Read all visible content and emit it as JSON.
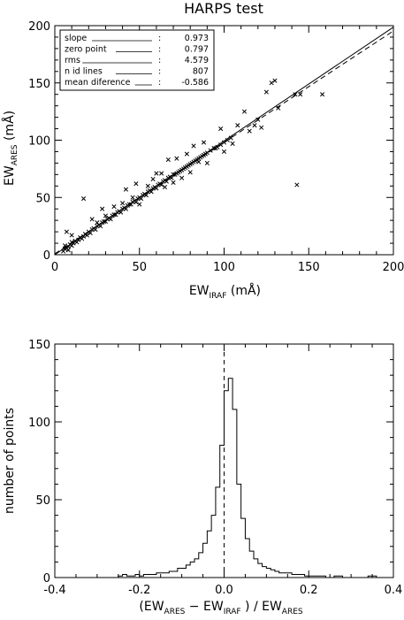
{
  "chart_data": [
    {
      "type": "scatter",
      "title": "HARPS test",
      "xlabel": {
        "main": "EW",
        "sub": "IRAF",
        "unit": " (mÅ)"
      },
      "ylabel": {
        "main": "EW",
        "sub": "ARES",
        "unit": " (mÅ)"
      },
      "xlim": [
        0,
        200
      ],
      "ylim": [
        0,
        200
      ],
      "xticks": [
        0,
        50,
        100,
        150,
        200
      ],
      "yticks": [
        0,
        50,
        100,
        150,
        200
      ],
      "legend_placement": "top-left",
      "stats": [
        {
          "label": "slope",
          "value": "0.973"
        },
        {
          "label": "zero point",
          "value": "0.797"
        },
        {
          "label": "rms",
          "value": "4.579"
        },
        {
          "label": "n id lines",
          "value": "807"
        },
        {
          "label": "mean diference",
          "value": "-0.586"
        }
      ],
      "fit_lines": [
        {
          "style": "solid",
          "from": [
            0,
            0
          ],
          "to": [
            200,
            198.7
          ]
        },
        {
          "style": "dashed",
          "from": [
            0,
            0.797
          ],
          "to": [
            200,
            195.4
          ]
        }
      ],
      "series": [
        {
          "marker": "x",
          "points": [
            [
              5,
              3
            ],
            [
              6,
              5
            ],
            [
              6,
              8
            ],
            [
              7,
              6
            ],
            [
              8,
              4
            ],
            [
              8,
              7
            ],
            [
              9,
              9
            ],
            [
              10,
              8
            ],
            [
              10,
              11
            ],
            [
              11,
              10
            ],
            [
              12,
              12
            ],
            [
              13,
              11
            ],
            [
              14,
              13
            ],
            [
              15,
              15
            ],
            [
              16,
              14
            ],
            [
              17,
              16
            ],
            [
              18,
              18
            ],
            [
              19,
              17
            ],
            [
              20,
              20
            ],
            [
              21,
              19
            ],
            [
              22,
              22
            ],
            [
              23,
              23
            ],
            [
              24,
              22
            ],
            [
              25,
              25
            ],
            [
              26,
              26
            ],
            [
              27,
              25
            ],
            [
              28,
              28
            ],
            [
              29,
              29
            ],
            [
              30,
              29
            ],
            [
              31,
              31
            ],
            [
              32,
              32
            ],
            [
              33,
              31
            ],
            [
              34,
              34
            ],
            [
              35,
              35
            ],
            [
              36,
              35
            ],
            [
              37,
              37
            ],
            [
              38,
              38
            ],
            [
              39,
              37
            ],
            [
              40,
              40
            ],
            [
              41,
              41
            ],
            [
              42,
              40
            ],
            [
              43,
              43
            ],
            [
              44,
              44
            ],
            [
              45,
              44
            ],
            [
              46,
              46
            ],
            [
              47,
              47
            ],
            [
              48,
              46
            ],
            [
              49,
              49
            ],
            [
              50,
              50
            ],
            [
              51,
              49
            ],
            [
              52,
              52
            ],
            [
              53,
              53
            ],
            [
              54,
              52
            ],
            [
              55,
              55
            ],
            [
              56,
              56
            ],
            [
              57,
              55
            ],
            [
              58,
              58
            ],
            [
              59,
              59
            ],
            [
              60,
              58
            ],
            [
              61,
              61
            ],
            [
              62,
              62
            ],
            [
              63,
              61
            ],
            [
              64,
              64
            ],
            [
              65,
              65
            ],
            [
              66,
              64
            ],
            [
              67,
              67
            ],
            [
              68,
              68
            ],
            [
              69,
              67
            ],
            [
              70,
              70
            ],
            [
              71,
              70
            ],
            [
              72,
              71
            ],
            [
              73,
              72
            ],
            [
              74,
              73
            ],
            [
              75,
              74
            ],
            [
              76,
              75
            ],
            [
              77,
              76
            ],
            [
              78,
              77
            ],
            [
              79,
              78
            ],
            [
              80,
              79
            ],
            [
              81,
              80
            ],
            [
              82,
              81
            ],
            [
              83,
              82
            ],
            [
              84,
              83
            ],
            [
              85,
              84
            ],
            [
              86,
              85
            ],
            [
              87,
              86
            ],
            [
              88,
              87
            ],
            [
              89,
              88
            ],
            [
              90,
              89
            ],
            [
              92,
              91
            ],
            [
              94,
              93
            ],
            [
              96,
              94
            ],
            [
              98,
              96
            ],
            [
              100,
              98
            ],
            [
              102,
              100
            ],
            [
              104,
              102
            ],
            [
              7,
              20
            ],
            [
              10,
              17
            ],
            [
              17,
              49
            ],
            [
              22,
              31
            ],
            [
              25,
              28
            ],
            [
              28,
              40
            ],
            [
              30,
              34
            ],
            [
              35,
              42
            ],
            [
              40,
              45
            ],
            [
              42,
              57
            ],
            [
              46,
              50
            ],
            [
              48,
              62
            ],
            [
              50,
              44
            ],
            [
              55,
              60
            ],
            [
              58,
              66
            ],
            [
              60,
              71
            ],
            [
              63,
              71
            ],
            [
              65,
              59
            ],
            [
              67,
              83
            ],
            [
              70,
              63
            ],
            [
              72,
              84
            ],
            [
              75,
              67
            ],
            [
              78,
              88
            ],
            [
              80,
              72
            ],
            [
              82,
              95
            ],
            [
              85,
              81
            ],
            [
              88,
              98
            ],
            [
              90,
              80
            ],
            [
              95,
              93
            ],
            [
              98,
              110
            ],
            [
              100,
              90
            ],
            [
              105,
              97
            ],
            [
              108,
              113
            ],
            [
              112,
              125
            ],
            [
              115,
              108
            ],
            [
              118,
              113
            ],
            [
              120,
              118
            ],
            [
              122,
              111
            ],
            [
              125,
              142
            ],
            [
              128,
              150
            ],
            [
              130,
              152
            ],
            [
              132,
              128
            ],
            [
              142,
              140
            ],
            [
              145,
              140
            ],
            [
              143,
              61
            ],
            [
              158,
              140
            ]
          ]
        }
      ]
    },
    {
      "type": "histogram",
      "xlabel": {
        "open": "(EW",
        "a": "ARES",
        "mid": " − EW",
        "b": "IRAF",
        "close": " ) / EW",
        "c": "ARES"
      },
      "ylabel": "number of points",
      "xlim": [
        -0.4,
        0.4
      ],
      "ylim": [
        0,
        150
      ],
      "xticks": [
        -0.4,
        -0.2,
        0.0,
        0.2,
        0.4
      ],
      "yticks": [
        0,
        50,
        100,
        150
      ],
      "reference_line": {
        "x": 0.0,
        "style": "dashed"
      },
      "bin_start": -0.4,
      "bin_width": 0.01,
      "counts": [
        0,
        0,
        0,
        0,
        0,
        0,
        0,
        0,
        0,
        0,
        0,
        0,
        0,
        0,
        0,
        1,
        2,
        1,
        1,
        2,
        1,
        2,
        2,
        2,
        3,
        3,
        3,
        4,
        4,
        6,
        6,
        8,
        10,
        12,
        16,
        22,
        30,
        40,
        58,
        85,
        120,
        128,
        108,
        60,
        38,
        25,
        17,
        12,
        9,
        7,
        6,
        5,
        4,
        3,
        3,
        3,
        2,
        2,
        2,
        1,
        1,
        1,
        1,
        1,
        0,
        0,
        1,
        1,
        0,
        0,
        0,
        0,
        0,
        0,
        1,
        1,
        0,
        0,
        0,
        0
      ]
    }
  ]
}
